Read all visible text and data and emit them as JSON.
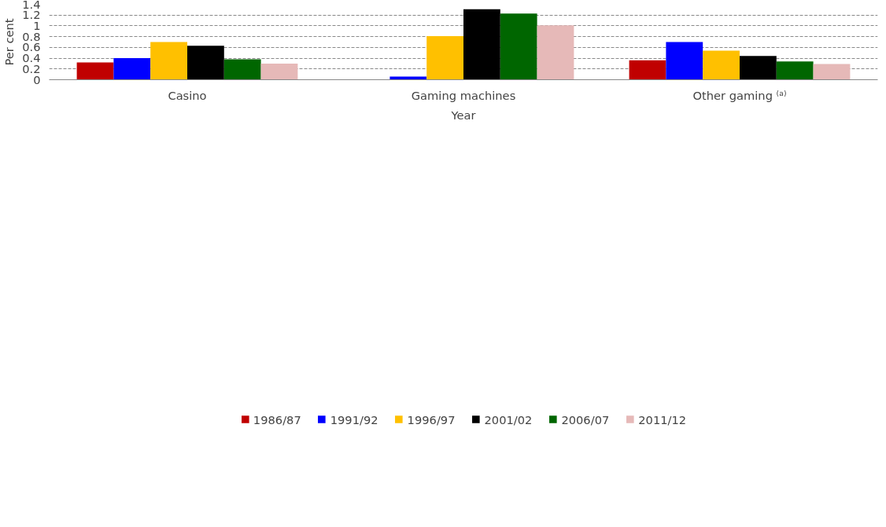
{
  "chart_data": {
    "type": "bar",
    "xlabel": "Year",
    "ylabel": "Per cent",
    "categories": [
      "Casino",
      "Gaming machines",
      "Other gaming ⁽ᵃ⁾"
    ],
    "series": [
      {
        "name": "1986/87",
        "color": "#c00000",
        "values": [
          0.32,
          null,
          0.36
        ]
      },
      {
        "name": "1991/92",
        "color": "#0000ff",
        "values": [
          0.4,
          0.06,
          0.7
        ]
      },
      {
        "name": "1996/97",
        "color": "#ffc000",
        "values": [
          0.7,
          0.81,
          0.54
        ]
      },
      {
        "name": "2001/02",
        "color": "#000000",
        "values": [
          0.63,
          1.31,
          0.44
        ]
      },
      {
        "name": "2006/07",
        "color": "#006600",
        "values": [
          0.38,
          1.23,
          0.34
        ]
      },
      {
        "name": "2011/12",
        "color": "#e6b9b8",
        "values": [
          0.3,
          1.01,
          0.29
        ]
      }
    ],
    "ylim": [
      0,
      1.4
    ],
    "yticks": [
      0,
      0.2,
      0.4,
      0.6,
      0.8,
      1,
      1.2,
      1.4
    ],
    "grid": "y",
    "legend": "bottom"
  }
}
